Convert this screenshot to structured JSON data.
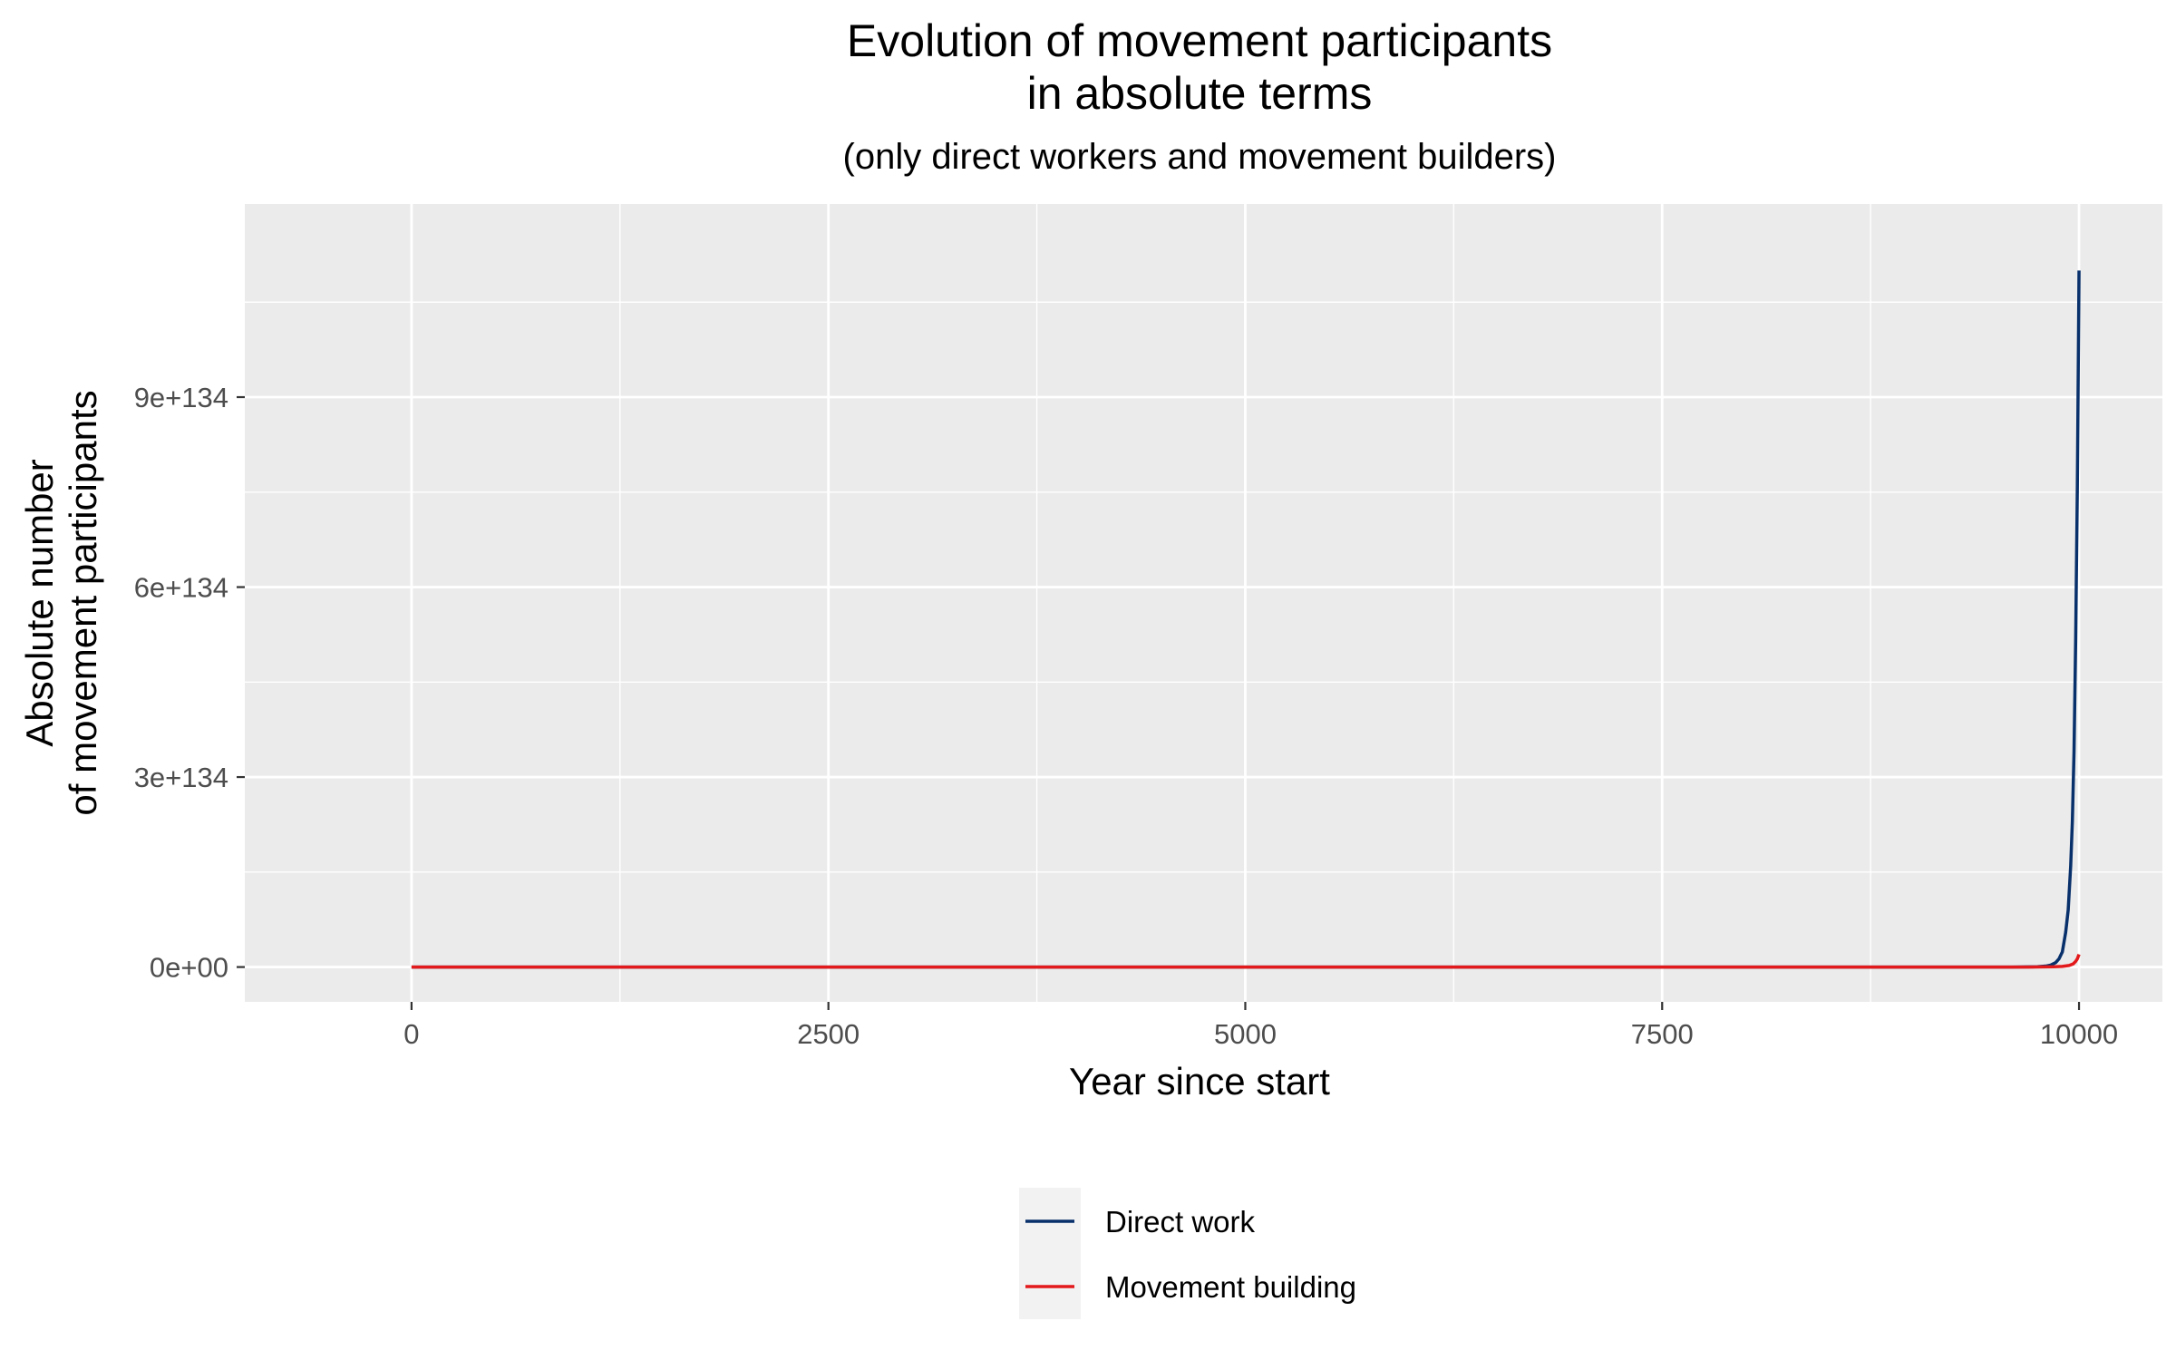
{
  "chart_data": {
    "type": "line",
    "title": [
      "Evolution of movement participants",
      "in absolute terms"
    ],
    "subtitle": "(only direct workers and movement builders)",
    "xlabel": "Year since start",
    "ylabel": [
      "Absolute number",
      "of movement participants"
    ],
    "xlim": [
      -1000,
      10500
    ],
    "ylim": [
      -5.5e+133,
      1.205e+135
    ],
    "x_ticks": [
      0,
      2500,
      5000,
      7500,
      10000
    ],
    "x_tick_labels": [
      "0",
      "2500",
      "5000",
      "7500",
      "10000"
    ],
    "y_ticks": [
      0,
      3e+134,
      6e+134,
      9e+134
    ],
    "y_tick_labels": [
      "0e+00",
      "3e+134",
      "6e+134",
      "9e+134"
    ],
    "grid": true,
    "legend_position": "bottom",
    "series": [
      {
        "name": "Direct work",
        "color": "#08306b",
        "points": [
          [
            0,
            0
          ],
          [
            9000,
            0
          ],
          [
            9600,
            0
          ],
          [
            9750,
            5e+131
          ],
          [
            9800,
            1.5e+132
          ],
          [
            9830,
            3e+132
          ],
          [
            9860,
            7e+132
          ],
          [
            9880,
            1.3e+133
          ],
          [
            9900,
            2.4e+133
          ],
          [
            9920,
            5.5e+133
          ],
          [
            9935,
            9e+133
          ],
          [
            9950,
            1.6e+134
          ],
          [
            9960,
            2.3e+134
          ],
          [
            9970,
            3.4e+134
          ],
          [
            9980,
            5.2e+134
          ],
          [
            9990,
            7.6e+134
          ],
          [
            10000,
            1.1e+135
          ]
        ]
      },
      {
        "name": "Movement building",
        "color": "#e31a1c",
        "points": [
          [
            0,
            0
          ],
          [
            9700,
            0
          ],
          [
            9850,
            5e+131
          ],
          [
            9900,
            1e+132
          ],
          [
            9940,
            2.5e+132
          ],
          [
            9965,
            5e+132
          ],
          [
            9980,
            9e+132
          ],
          [
            9990,
            1.3e+133
          ],
          [
            10000,
            2e+133
          ]
        ]
      }
    ]
  }
}
